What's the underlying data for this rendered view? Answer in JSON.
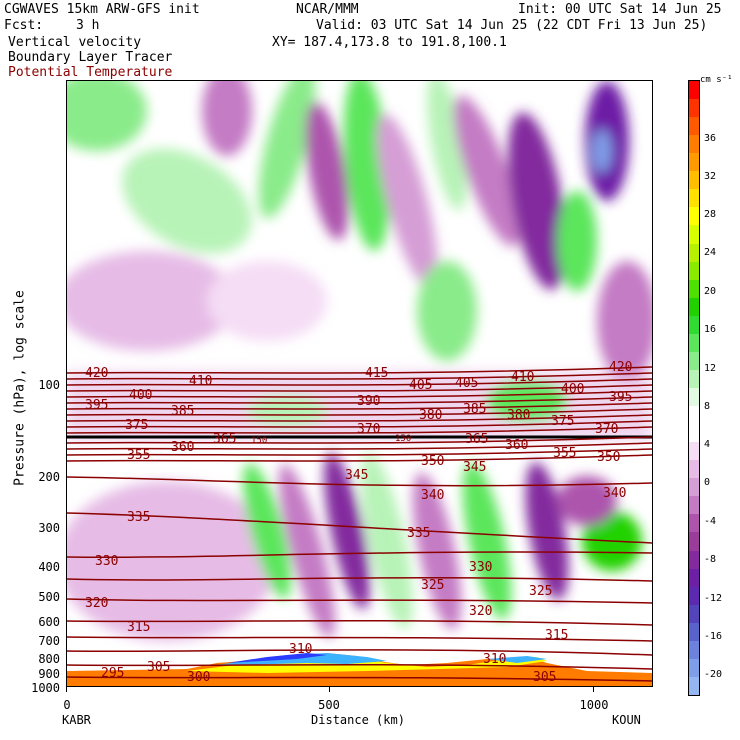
{
  "header": {
    "model_line": "CGWAVES 15km ARW-GFS init",
    "org": "NCAR/MMM",
    "init": "Init: 00 UTC Sat 14 Jun 25",
    "fcst_label": "Fcst:",
    "fcst_value": "3 h",
    "valid": "Valid: 03 UTC Sat 14 Jun 25 (22 CDT Fri 13 Jun 25)",
    "field1": "Vertical velocity",
    "xy": "XY= 187.4,173.8 to 191.8,100.1",
    "field2": "Boundary Layer Tracer",
    "field3": "Potential Temperature",
    "field3_color": "#8b0000"
  },
  "axes": {
    "ylabel": "Pressure (hPa), log scale",
    "xlabel": "Distance (km)",
    "left_station": "KABR",
    "right_station": "KOUN",
    "y_ticks": [
      "100",
      "200",
      "300",
      "400",
      "500",
      "600",
      "700",
      "800",
      "900",
      "1000"
    ],
    "x_ticks": [
      "0",
      "500",
      "1000"
    ]
  },
  "colorbar": {
    "units": "cm s⁻¹",
    "labels": [
      "36",
      "32",
      "28",
      "24",
      "20",
      "16",
      "12",
      "8",
      "4",
      "0",
      "-4",
      "-8",
      "-12",
      "-16",
      "-20"
    ],
    "colors": [
      "#ff0000",
      "#ff3300",
      "#ff5a00",
      "#ff7c00",
      "#ff9a00",
      "#ffbf00",
      "#ffe100",
      "#ffff00",
      "#d7ff00",
      "#b7f000",
      "#8aea00",
      "#4ee000",
      "#22d200",
      "#2fdc2f",
      "#5ce65c",
      "#8aeb8a",
      "#b7f3b7",
      "#e1fae1",
      "#ffffff",
      "#ffffff",
      "#f5ddf5",
      "#e6bce6",
      "#d59ed5",
      "#c47bc4",
      "#ad55ad",
      "#9a3c9a",
      "#822a9e",
      "#6d1fa6",
      "#5b2ab0",
      "#5444bc",
      "#5a63cc",
      "#6d82dc",
      "#7f9ee8",
      "#94b7f2"
    ]
  },
  "contour_labels": [
    "420",
    "410",
    "415",
    "405",
    "405",
    "410",
    "420",
    "400",
    "400",
    "395",
    "390",
    "395",
    "385",
    "385",
    "380",
    "380",
    "375",
    "375",
    "370",
    "370",
    "365",
    "150",
    "150",
    "365",
    "360",
    "360",
    "355",
    "355",
    "350",
    "350",
    "345",
    "345",
    "340",
    "340",
    "335",
    "335",
    "330",
    "330",
    "325",
    "325",
    "320",
    "320",
    "315",
    "315",
    "310",
    "310",
    "305",
    "305",
    "300",
    "295"
  ]
}
